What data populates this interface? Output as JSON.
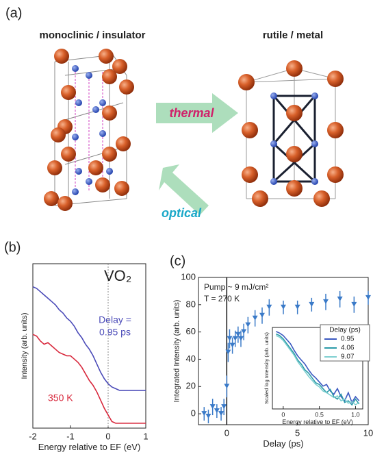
{
  "panel_a": {
    "label": "(a)",
    "left_title": "monoclinic / insulator",
    "right_title": "rutile / metal",
    "arrow_thermal": "thermal",
    "arrow_optical": "optical"
  },
  "chart_data": [
    {
      "type": "line",
      "panel_label": "(b)",
      "material": "VO₂",
      "delay_label": [
        "Delay =",
        "0.95 ps"
      ],
      "temp_label": "350 K",
      "xlabel": "Energy relative to EF (eV)",
      "ylabel": "Intensity (arb. units)",
      "x": [
        -2,
        -1.9,
        -1.8,
        -1.7,
        -1.6,
        -1.5,
        -1.4,
        -1.3,
        -1.2,
        -1.1,
        -1,
        -0.9,
        -0.8,
        -0.7,
        -0.6,
        -0.5,
        -0.4,
        -0.3,
        -0.2,
        -0.1,
        0,
        0.1,
        0.2,
        0.3,
        0.4,
        0.5,
        0.6,
        0.7,
        0.8,
        0.9,
        1
      ],
      "xlim": [
        -2,
        1
      ],
      "xticks": [
        -2,
        -1,
        0,
        1
      ],
      "ylim": [
        0,
        1
      ],
      "ref_x": 0,
      "series": [
        {
          "color": "#4a4ab8",
          "values": [
            0.86,
            0.85,
            0.83,
            0.81,
            0.79,
            0.77,
            0.75,
            0.72,
            0.7,
            0.67,
            0.65,
            0.62,
            0.58,
            0.55,
            0.51,
            0.48,
            0.44,
            0.39,
            0.34,
            0.3,
            0.27,
            0.25,
            0.24,
            0.23,
            0.23,
            0.23,
            0.23,
            0.23,
            0.23,
            0.23,
            0.23
          ]
        },
        {
          "color": "#d8283c",
          "values": [
            0.57,
            0.56,
            0.53,
            0.51,
            0.52,
            0.5,
            0.48,
            0.46,
            0.45,
            0.44,
            0.44,
            0.42,
            0.4,
            0.37,
            0.33,
            0.29,
            0.26,
            0.22,
            0.17,
            0.12,
            0.08,
            0.04,
            0.03,
            0.03,
            0.03,
            0.03,
            0.03,
            0.03,
            0.03,
            0.03,
            0.03
          ]
        }
      ]
    },
    {
      "type": "errorbar",
      "panel_label": "(c)",
      "annotations": [
        "Pump ~ 9 mJ/cm²",
        "T = 270 K"
      ],
      "xlabel": "Delay (ps)",
      "ylabel": "Integrated Intensity (arb. units)",
      "x": [
        -1.6,
        -1.3,
        -1.0,
        -0.7,
        -0.4,
        -0.2,
        0,
        0.1,
        0.2,
        0.4,
        0.6,
        0.8,
        1.0,
        1.2,
        1.5,
        2,
        2.5,
        3,
        4,
        5,
        6,
        7,
        8,
        9,
        10
      ],
      "values": [
        0,
        -2,
        5,
        2,
        0,
        5,
        20,
        45,
        55,
        50,
        55,
        58,
        55,
        60,
        65,
        70,
        72,
        78,
        78,
        78,
        80,
        82,
        84,
        80,
        85
      ],
      "errors": [
        5,
        5,
        6,
        5,
        5,
        6,
        8,
        7,
        7,
        6,
        6,
        6,
        6,
        6,
        6,
        6,
        6,
        6,
        5,
        5,
        5,
        6,
        6,
        6,
        5
      ],
      "color": "#3a7ac8",
      "xlim": [
        -2,
        10
      ],
      "xticks": [
        0,
        5,
        10
      ],
      "ylim": [
        -8,
        100
      ],
      "yticks": [
        0,
        20,
        40,
        60,
        80,
        100
      ],
      "ref_x": 0
    },
    {
      "type": "line",
      "xlabel": "Energy relative to EF (eV)",
      "ylabel": "Scaled log Intensity (arb. units)",
      "x": [
        -0.1,
        -0.05,
        0,
        0.05,
        0.1,
        0.15,
        0.2,
        0.25,
        0.3,
        0.35,
        0.4,
        0.45,
        0.5,
        0.55,
        0.6,
        0.65,
        0.7,
        0.75,
        0.8,
        0.85,
        0.9,
        0.95,
        1,
        1.05
      ],
      "xlim": [
        -0.15,
        1.1
      ],
      "xticks": [
        0,
        0.5,
        {
          "value": 1,
          "label": "1.0"
        }
      ],
      "ylim": [
        0,
        1
      ],
      "legend": "upper right",
      "legend_title": "Delay (ps)",
      "series": [
        {
          "name": "0.95",
          "color": "#3a58c0",
          "values": [
            0.95,
            0.93,
            0.9,
            0.85,
            0.8,
            0.72,
            0.65,
            0.6,
            0.55,
            0.48,
            0.42,
            0.38,
            0.33,
            0.28,
            0.3,
            0.22,
            0.18,
            0.25,
            0.15,
            0.1,
            0.2,
            0.08,
            0.15,
            0.1
          ]
        },
        {
          "name": "4.06",
          "color": "#2a9aa8",
          "values": [
            0.92,
            0.9,
            0.86,
            0.8,
            0.74,
            0.68,
            0.6,
            0.55,
            0.48,
            0.44,
            0.38,
            0.32,
            0.3,
            0.25,
            0.2,
            0.24,
            0.15,
            0.12,
            0.18,
            0.08,
            0.1,
            0.05,
            0.12,
            0.06
          ]
        },
        {
          "name": "9.07",
          "color": "#7ecfd0",
          "values": [
            0.9,
            0.88,
            0.84,
            0.78,
            0.72,
            0.66,
            0.58,
            0.52,
            0.46,
            0.4,
            0.35,
            0.3,
            0.27,
            0.22,
            0.2,
            0.17,
            0.14,
            0.16,
            0.1,
            0.12,
            0.07,
            0.09,
            0.05,
            0.08
          ]
        }
      ]
    }
  ]
}
